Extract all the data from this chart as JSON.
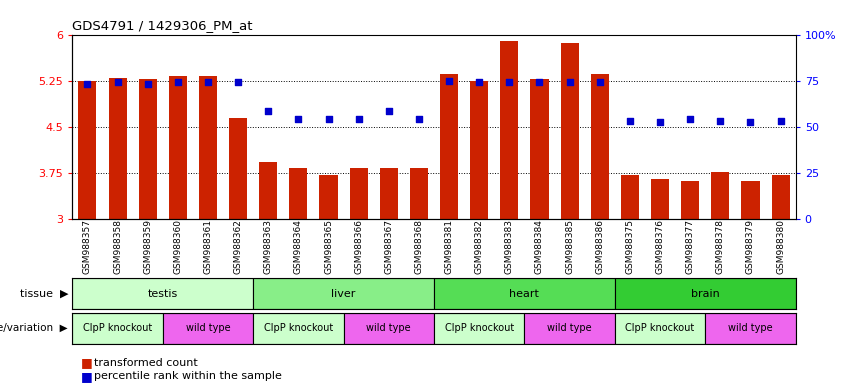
{
  "title": "GDS4791 / 1429306_PM_at",
  "samples": [
    "GSM988357",
    "GSM988358",
    "GSM988359",
    "GSM988360",
    "GSM988361",
    "GSM988362",
    "GSM988363",
    "GSM988364",
    "GSM988365",
    "GSM988366",
    "GSM988367",
    "GSM988368",
    "GSM988381",
    "GSM988382",
    "GSM988383",
    "GSM988384",
    "GSM988385",
    "GSM988386",
    "GSM988375",
    "GSM988376",
    "GSM988377",
    "GSM988378",
    "GSM988379",
    "GSM988380"
  ],
  "bar_values": [
    5.25,
    5.3,
    5.27,
    5.32,
    5.33,
    4.65,
    3.92,
    3.82,
    3.72,
    3.82,
    3.82,
    3.82,
    5.35,
    5.25,
    5.9,
    5.27,
    5.87,
    5.35,
    3.72,
    3.65,
    3.62,
    3.77,
    3.62,
    3.72
  ],
  "dot_values": [
    5.2,
    5.22,
    5.19,
    5.22,
    5.22,
    5.22,
    4.75,
    4.63,
    4.62,
    4.62,
    4.75,
    4.63,
    5.25,
    5.22,
    5.22,
    5.22,
    5.22,
    5.22,
    4.6,
    4.57,
    4.63,
    4.6,
    4.57,
    4.6
  ],
  "ylim": [
    3.0,
    6.0
  ],
  "yticks": [
    3.0,
    3.75,
    4.5,
    5.25,
    6.0
  ],
  "right_yticks": [
    0,
    25,
    50,
    75,
    100
  ],
  "bar_color": "#cc2200",
  "dot_color": "#0000cc",
  "tissue_groups": [
    {
      "label": "testis",
      "start": 0,
      "end": 6,
      "color": "#ccffcc"
    },
    {
      "label": "liver",
      "start": 6,
      "end": 12,
      "color": "#88ee88"
    },
    {
      "label": "heart",
      "start": 12,
      "end": 18,
      "color": "#55dd55"
    },
    {
      "label": "brain",
      "start": 18,
      "end": 24,
      "color": "#33cc33"
    }
  ],
  "genotype_groups": [
    {
      "label": "ClpP knockout",
      "start": 0,
      "end": 3,
      "color": "#ccffcc"
    },
    {
      "label": "wild type",
      "start": 3,
      "end": 6,
      "color": "#ee66ee"
    },
    {
      "label": "ClpP knockout",
      "start": 6,
      "end": 9,
      "color": "#ccffcc"
    },
    {
      "label": "wild type",
      "start": 9,
      "end": 12,
      "color": "#ee66ee"
    },
    {
      "label": "ClpP knockout",
      "start": 12,
      "end": 15,
      "color": "#ccffcc"
    },
    {
      "label": "wild type",
      "start": 15,
      "end": 18,
      "color": "#ee66ee"
    },
    {
      "label": "ClpP knockout",
      "start": 18,
      "end": 21,
      "color": "#ccffcc"
    },
    {
      "label": "wild type",
      "start": 21,
      "end": 24,
      "color": "#ee66ee"
    }
  ]
}
